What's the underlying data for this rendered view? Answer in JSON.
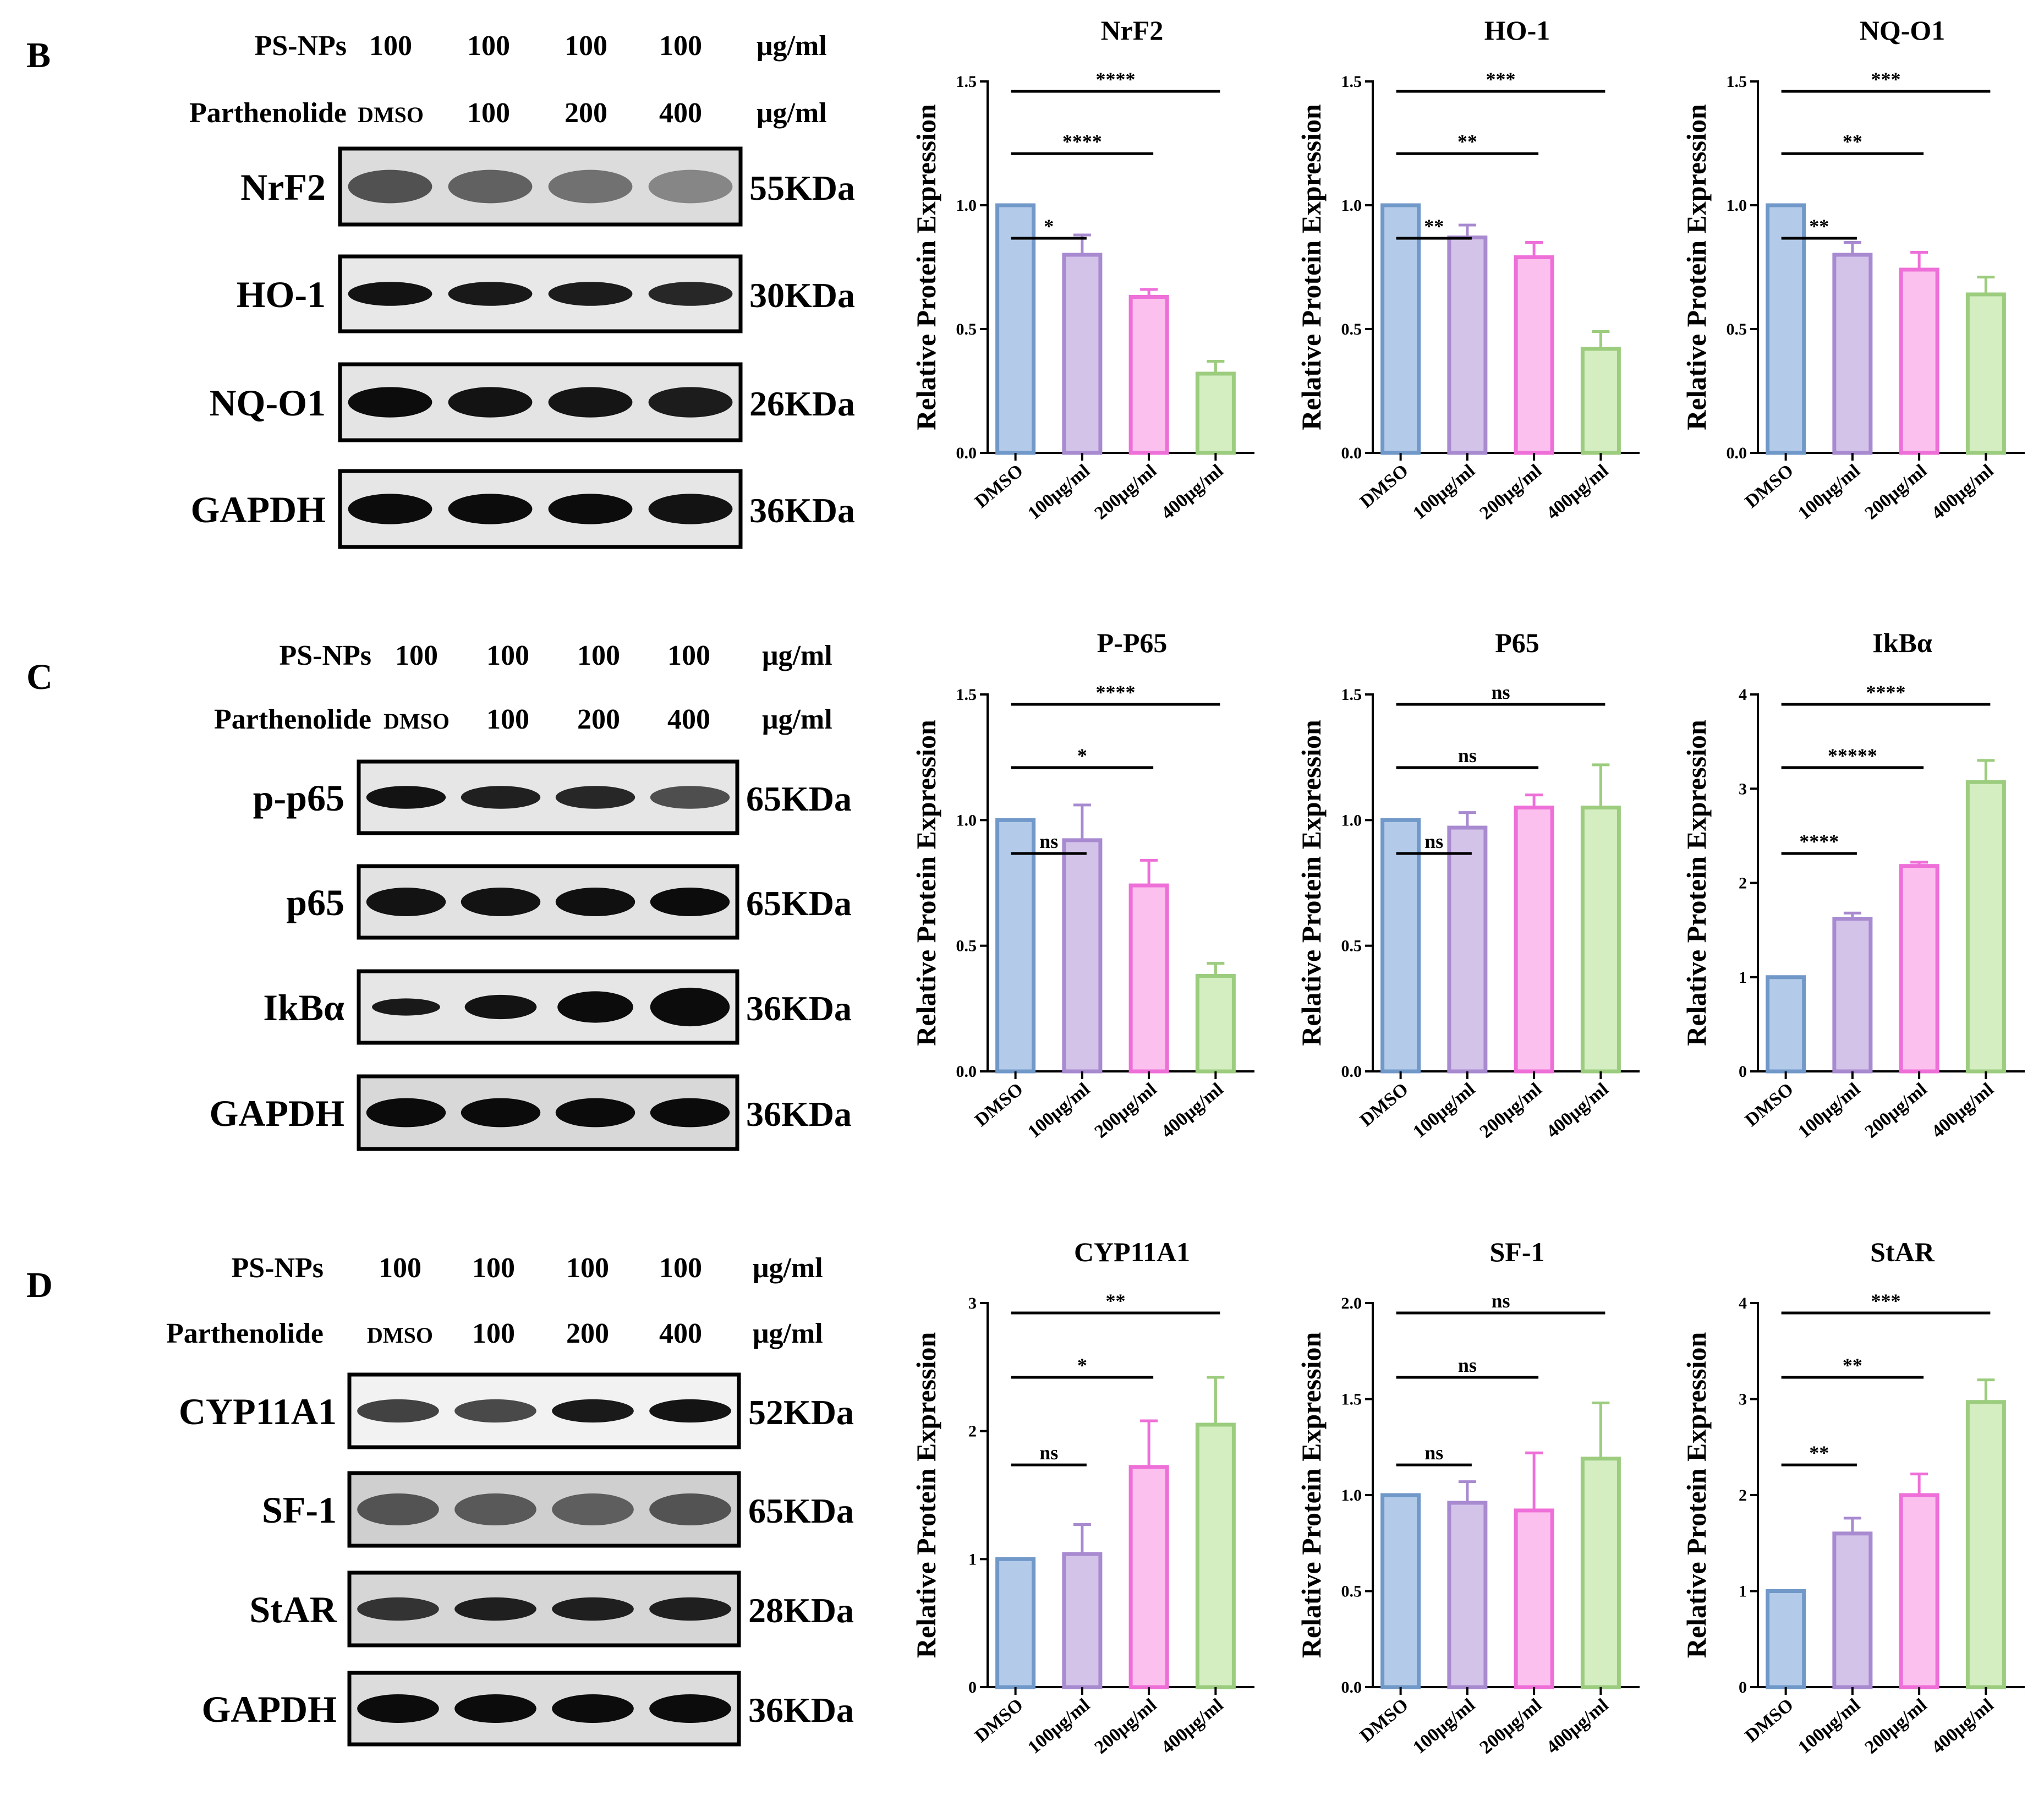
{
  "panels": [
    {
      "label": "B",
      "blot": {
        "header": [
          {
            "label": "PS-NPs",
            "values": [
              "100",
              "100",
              "100",
              "100"
            ],
            "unit": "μg/ml"
          },
          {
            "label": "Parthenolide",
            "values": [
              "DMSO",
              "100",
              "200",
              "400"
            ],
            "unit": "μg/ml"
          }
        ],
        "bands": [
          {
            "name": "NrF2",
            "kda": "55KDa",
            "intensity": [
              0.75,
              0.6,
              0.45,
              0.25
            ],
            "bg": "#dcdcdc",
            "shape": "diffuse"
          },
          {
            "name": "HO-1",
            "kda": "30KDa",
            "intensity": [
              0.95,
              0.9,
              0.88,
              0.8
            ],
            "bg": "#e8e8e8",
            "shape": "band"
          },
          {
            "name": "NQ-O1",
            "kda": "26KDa",
            "intensity": [
              1,
              0.95,
              0.93,
              0.88
            ],
            "bg": "#e4e4e4",
            "shape": "thick"
          },
          {
            "name": "GAPDH",
            "kda": "36KDa",
            "intensity": [
              1,
              1,
              1,
              0.95
            ],
            "bg": "#e6e6e6",
            "shape": "thick"
          }
        ]
      }
    },
    {
      "label": "C",
      "blot": {
        "header": [
          {
            "label": "PS-NPs",
            "values": [
              "100",
              "100",
              "100",
              "100"
            ],
            "unit": "μg/ml"
          },
          {
            "label": "Parthenolide",
            "values": [
              "DMSO",
              "100",
              "200",
              "400"
            ],
            "unit": "μg/ml"
          }
        ],
        "bands": [
          {
            "name": "p-p65",
            "kda": "65KDa",
            "intensity": [
              0.95,
              0.85,
              0.8,
              0.5
            ],
            "bg": "#e6e6e6",
            "shape": "band"
          },
          {
            "name": "p65",
            "kda": "65KDa",
            "intensity": [
              0.95,
              0.95,
              0.97,
              1
            ],
            "bg": "#e2e2e2",
            "shape": "thick"
          },
          {
            "name": "IkBα",
            "kda": "36KDa",
            "intensity": [
              0.9,
              0.95,
              1,
              1
            ],
            "bg": "#e6e6e6",
            "shape": "grow"
          },
          {
            "name": "GAPDH",
            "kda": "36KDa",
            "intensity": [
              1,
              1,
              1,
              1
            ],
            "bg": "#d8d8d8",
            "shape": "thick"
          }
        ]
      }
    },
    {
      "label": "D",
      "blot": {
        "header": [
          {
            "label": "PS-NPs",
            "values": [
              "100",
              "100",
              "100",
              "100"
            ],
            "unit": "μg/ml"
          },
          {
            "label": "Parthenolide",
            "values": [
              "DMSO",
              "100",
              "200",
              "400"
            ],
            "unit": "μg/ml"
          }
        ],
        "bands": [
          {
            "name": "CYP11A1",
            "kda": "52KDa",
            "intensity": [
              0.6,
              0.55,
              0.9,
              0.95
            ],
            "bg": "#f2f2f2",
            "shape": "band"
          },
          {
            "name": "SF-1",
            "kda": "65KDa",
            "intensity": [
              0.7,
              0.65,
              0.6,
              0.7
            ],
            "bg": "#cfcfcf",
            "shape": "diffuse"
          },
          {
            "name": "StAR",
            "kda": "28KDa",
            "intensity": [
              0.7,
              0.85,
              0.85,
              0.85
            ],
            "bg": "#d6d6d6",
            "shape": "band"
          },
          {
            "name": "GAPDH",
            "kda": "36KDa",
            "intensity": [
              1,
              1,
              1,
              1
            ],
            "bg": "#dcdcdc",
            "shape": "thick"
          }
        ]
      }
    }
  ],
  "chart_data": [
    {
      "type": "bar",
      "title": "NrF2",
      "ylabel": "Relative Protein Expression",
      "categories": [
        "DMSO",
        "100μg/ml",
        "200μg/ml",
        "400μg/ml"
      ],
      "values": [
        1.0,
        0.8,
        0.63,
        0.32
      ],
      "errors": [
        0,
        0.08,
        0.03,
        0.05
      ],
      "ylim": [
        0,
        1.5
      ],
      "yticks": [
        "0.0",
        "0.5",
        "1.0",
        "1.5"
      ],
      "significance": [
        {
          "from": 0,
          "to": 1,
          "label": "*"
        },
        {
          "from": 0,
          "to": 2,
          "label": "****"
        },
        {
          "from": 0,
          "to": 3,
          "label": "****"
        }
      ]
    },
    {
      "type": "bar",
      "title": "HO-1",
      "ylabel": "Relative Protein Expression",
      "categories": [
        "DMSO",
        "100μg/ml",
        "200μg/ml",
        "400μg/ml"
      ],
      "values": [
        1.0,
        0.87,
        0.79,
        0.42
      ],
      "errors": [
        0,
        0.05,
        0.06,
        0.07
      ],
      "ylim": [
        0,
        1.5
      ],
      "yticks": [
        "0.0",
        "0.5",
        "1.0",
        "1.5"
      ],
      "significance": [
        {
          "from": 0,
          "to": 1,
          "label": "**"
        },
        {
          "from": 0,
          "to": 2,
          "label": "**"
        },
        {
          "from": 0,
          "to": 3,
          "label": "***"
        }
      ]
    },
    {
      "type": "bar",
      "title": "NQ-O1",
      "ylabel": "Relative Protein Expression",
      "categories": [
        "DMSO",
        "100μg/ml",
        "200μg/ml",
        "400μg/ml"
      ],
      "values": [
        1.0,
        0.8,
        0.74,
        0.64
      ],
      "errors": [
        0,
        0.05,
        0.07,
        0.07
      ],
      "ylim": [
        0,
        1.5
      ],
      "yticks": [
        "0.0",
        "0.5",
        "1.0",
        "1.5"
      ],
      "significance": [
        {
          "from": 0,
          "to": 1,
          "label": "**"
        },
        {
          "from": 0,
          "to": 2,
          "label": "**"
        },
        {
          "from": 0,
          "to": 3,
          "label": "***"
        }
      ]
    },
    {
      "type": "bar",
      "title": "P-P65",
      "ylabel": "Relative Protein Expression",
      "categories": [
        "DMSO",
        "100μg/ml",
        "200μg/ml",
        "400μg/ml"
      ],
      "values": [
        1.0,
        0.92,
        0.74,
        0.38
      ],
      "errors": [
        0,
        0.14,
        0.1,
        0.05
      ],
      "ylim": [
        0,
        1.5
      ],
      "yticks": [
        "0.0",
        "0.5",
        "1.0",
        "1.5"
      ],
      "significance": [
        {
          "from": 0,
          "to": 1,
          "label": "ns"
        },
        {
          "from": 0,
          "to": 2,
          "label": "*"
        },
        {
          "from": 0,
          "to": 3,
          "label": "****"
        }
      ]
    },
    {
      "type": "bar",
      "title": "P65",
      "ylabel": "Relative Protein Expression",
      "categories": [
        "DMSO",
        "100μg/ml",
        "200μg/ml",
        "400μg/ml"
      ],
      "values": [
        1.0,
        0.97,
        1.05,
        1.05
      ],
      "errors": [
        0,
        0.06,
        0.05,
        0.17
      ],
      "ylim": [
        0,
        1.5
      ],
      "yticks": [
        "0.0",
        "0.5",
        "1.0",
        "1.5"
      ],
      "significance": [
        {
          "from": 0,
          "to": 1,
          "label": "ns"
        },
        {
          "from": 0,
          "to": 2,
          "label": "ns"
        },
        {
          "from": 0,
          "to": 3,
          "label": "ns"
        }
      ]
    },
    {
      "type": "bar",
      "title": "IkBα",
      "ylabel": "Relative Protein Expression",
      "categories": [
        "DMSO",
        "100μg/ml",
        "200μg/ml",
        "400μg/ml"
      ],
      "values": [
        1.0,
        1.62,
        2.18,
        3.07
      ],
      "errors": [
        0,
        0.06,
        0.04,
        0.23
      ],
      "ylim": [
        0,
        4
      ],
      "yticks": [
        "0",
        "1",
        "2",
        "3",
        "4"
      ],
      "significance": [
        {
          "from": 0,
          "to": 1,
          "label": "****"
        },
        {
          "from": 0,
          "to": 2,
          "label": "*****"
        },
        {
          "from": 0,
          "to": 3,
          "label": "****"
        }
      ]
    },
    {
      "type": "bar",
      "title": "CYP11A1",
      "ylabel": "Relative Protein Expression",
      "categories": [
        "DMSO",
        "100μg/ml",
        "200μg/ml",
        "400μg/ml"
      ],
      "values": [
        1.0,
        1.04,
        1.72,
        2.05
      ],
      "errors": [
        0,
        0.23,
        0.36,
        0.37
      ],
      "ylim": [
        0,
        3
      ],
      "yticks": [
        "0",
        "1",
        "2",
        "3"
      ],
      "significance": [
        {
          "from": 0,
          "to": 1,
          "label": "ns"
        },
        {
          "from": 0,
          "to": 2,
          "label": "*"
        },
        {
          "from": 0,
          "to": 3,
          "label": "**"
        }
      ]
    },
    {
      "type": "bar",
      "title": "SF-1",
      "ylabel": "Relative Protein Expression",
      "categories": [
        "DMSO",
        "100μg/ml",
        "200μg/ml",
        "400μg/ml"
      ],
      "values": [
        1.0,
        0.96,
        0.92,
        1.19
      ],
      "errors": [
        0,
        0.11,
        0.3,
        0.29
      ],
      "ylim": [
        0,
        2.0
      ],
      "yticks": [
        "0.0",
        "0.5",
        "1.0",
        "1.5",
        "2.0"
      ],
      "significance": [
        {
          "from": 0,
          "to": 1,
          "label": "ns"
        },
        {
          "from": 0,
          "to": 2,
          "label": "ns"
        },
        {
          "from": 0,
          "to": 3,
          "label": "ns"
        }
      ]
    },
    {
      "type": "bar",
      "title": "StAR",
      "ylabel": "Relative Protein Expression",
      "categories": [
        "DMSO",
        "100μg/ml",
        "200μg/ml",
        "400μg/ml"
      ],
      "values": [
        1.0,
        1.6,
        2.0,
        2.97
      ],
      "errors": [
        0,
        0.16,
        0.22,
        0.23
      ],
      "ylim": [
        0,
        4
      ],
      "yticks": [
        "0",
        "1",
        "2",
        "3",
        "4"
      ],
      "significance": [
        {
          "from": 0,
          "to": 1,
          "label": "**"
        },
        {
          "from": 0,
          "to": 2,
          "label": "**"
        },
        {
          "from": 0,
          "to": 3,
          "label": "***"
        }
      ]
    }
  ],
  "colors": {
    "fills": [
      "#b3cbe9",
      "#d4c3e9",
      "#fcc0ee",
      "#d4eec2"
    ],
    "strokes": [
      "#7098c8",
      "#a88ad0",
      "#ee6fd8",
      "#9ccc7e"
    ]
  }
}
